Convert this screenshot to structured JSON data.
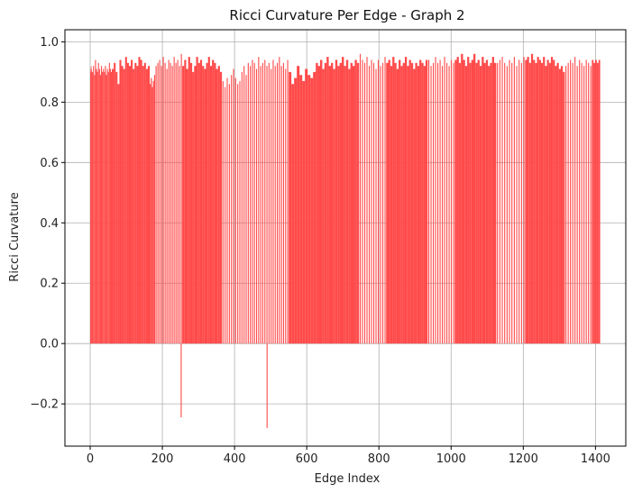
{
  "chart_data": {
    "type": "bar",
    "title": "Ricci Curvature Per Edge - Graph 2",
    "xlabel": "Edge Index",
    "ylabel": "Ricci Curvature",
    "xlim": [
      -70,
      1484
    ],
    "ylim": [
      -0.34,
      1.04
    ],
    "xticks": [
      0,
      200,
      400,
      600,
      800,
      1000,
      1200,
      1400
    ],
    "yticks": [
      -0.2,
      0.0,
      0.2,
      0.4,
      0.6,
      0.8,
      1.0
    ],
    "grid": true,
    "bar_color": "#ff4a4a",
    "edge_count": 1413,
    "segments": [
      {
        "start": 0,
        "end": 5,
        "kind": "dense",
        "values": [
          0.91,
          0.9,
          0.92,
          0.91,
          0.9
        ]
      },
      {
        "start": 5,
        "end": 60,
        "kind": "sparse",
        "values": [
          0.9,
          0.92,
          0.89,
          0.94,
          0.91,
          0.9,
          0.93,
          0.91,
          0.89,
          0.92,
          0.9,
          0.91,
          0.9,
          0.92,
          0.89,
          0.91,
          0.9,
          0.93,
          0.91,
          0.9
        ]
      },
      {
        "start": 60,
        "end": 165,
        "kind": "dense",
        "values": [
          0.91,
          0.93,
          0.9,
          0.86,
          0.94,
          0.92,
          0.91,
          0.95,
          0.93,
          0.92,
          0.94,
          0.91,
          0.93,
          0.92,
          0.95,
          0.94,
          0.92,
          0.93,
          0.91,
          0.92
        ]
      },
      {
        "start": 165,
        "end": 180,
        "kind": "dense",
        "values": [
          0.86,
          0.88,
          0.85,
          0.87,
          0.89
        ]
      },
      {
        "start": 180,
        "end": 255,
        "kind": "sparse",
        "values": [
          0.92,
          0.93,
          0.94,
          0.92,
          0.95,
          0.93,
          0.91,
          0.94,
          0.93,
          0.92,
          0.95,
          0.93,
          0.94,
          0.92,
          0.96
        ]
      },
      {
        "start": 255,
        "end": 365,
        "kind": "dense",
        "values": [
          0.92,
          0.94,
          0.91,
          0.95,
          0.93,
          0.9,
          0.92,
          0.95,
          0.93,
          0.94,
          0.92,
          0.91,
          0.93,
          0.95,
          0.92,
          0.94,
          0.93,
          0.91,
          0.92,
          0.9
        ]
      },
      {
        "start": 365,
        "end": 435,
        "kind": "sparse",
        "values": [
          0.87,
          0.85,
          0.88,
          0.86,
          0.89,
          0.91,
          0.88,
          0.86,
          0.87,
          0.9,
          0.92,
          0.89
        ]
      },
      {
        "start": 435,
        "end": 550,
        "kind": "sparse",
        "values": [
          0.93,
          0.92,
          0.94,
          0.93,
          0.91,
          0.95,
          0.92,
          0.93,
          0.94,
          0.92,
          0.93,
          0.91,
          0.94,
          0.92,
          0.93,
          0.95,
          0.92,
          0.93,
          0.91,
          0.94
        ]
      },
      {
        "start": 550,
        "end": 625,
        "kind": "dense",
        "values": [
          0.9,
          0.86,
          0.88,
          0.92,
          0.89,
          0.87,
          0.91,
          0.89,
          0.88,
          0.9
        ]
      },
      {
        "start": 625,
        "end": 745,
        "kind": "dense",
        "values": [
          0.93,
          0.92,
          0.94,
          0.91,
          0.93,
          0.95,
          0.92,
          0.93,
          0.91,
          0.94,
          0.92,
          0.93,
          0.95,
          0.92,
          0.94,
          0.91,
          0.93,
          0.92,
          0.94,
          0.93
        ]
      },
      {
        "start": 745,
        "end": 820,
        "kind": "sparse",
        "values": [
          0.96,
          0.94,
          0.93,
          0.95,
          0.92,
          0.94,
          0.93,
          0.91,
          0.94,
          0.92,
          0.93,
          0.95
        ]
      },
      {
        "start": 820,
        "end": 935,
        "kind": "dense",
        "values": [
          0.93,
          0.94,
          0.92,
          0.95,
          0.93,
          0.91,
          0.94,
          0.92,
          0.93,
          0.95,
          0.92,
          0.94,
          0.93,
          0.91,
          0.93,
          0.92,
          0.94,
          0.93,
          0.92,
          0.94
        ]
      },
      {
        "start": 935,
        "end": 1010,
        "kind": "sparse",
        "values": [
          0.94,
          0.92,
          0.93,
          0.95,
          0.93,
          0.94,
          0.92,
          0.95,
          0.93,
          0.92,
          0.94,
          0.93
        ]
      },
      {
        "start": 1010,
        "end": 1125,
        "kind": "dense",
        "values": [
          0.94,
          0.95,
          0.93,
          0.96,
          0.94,
          0.92,
          0.95,
          0.93,
          0.94,
          0.96,
          0.93,
          0.94,
          0.92,
          0.95,
          0.93,
          0.94,
          0.92,
          0.93,
          0.95,
          0.93
        ]
      },
      {
        "start": 1125,
        "end": 1205,
        "kind": "sparse",
        "values": [
          0.93,
          0.94,
          0.95,
          0.93,
          0.92,
          0.94,
          0.93,
          0.95,
          0.92,
          0.94,
          0.93,
          0.95
        ]
      },
      {
        "start": 1205,
        "end": 1315,
        "kind": "dense",
        "values": [
          0.94,
          0.95,
          0.93,
          0.96,
          0.94,
          0.93,
          0.95,
          0.94,
          0.93,
          0.95,
          0.92,
          0.94,
          0.93,
          0.95,
          0.94,
          0.92,
          0.93,
          0.91,
          0.92,
          0.9
        ]
      },
      {
        "start": 1315,
        "end": 1390,
        "kind": "sparse",
        "values": [
          0.92,
          0.93,
          0.94,
          0.93,
          0.95,
          0.92,
          0.94,
          0.93,
          0.92,
          0.94,
          0.93,
          0.92
        ]
      },
      {
        "start": 1390,
        "end": 1413,
        "kind": "dense",
        "values": [
          0.94,
          0.93,
          0.94,
          0.93,
          0.94
        ]
      }
    ],
    "outliers": [
      {
        "x": 252,
        "y": -0.245
      },
      {
        "x": 490,
        "y": -0.28
      }
    ]
  }
}
